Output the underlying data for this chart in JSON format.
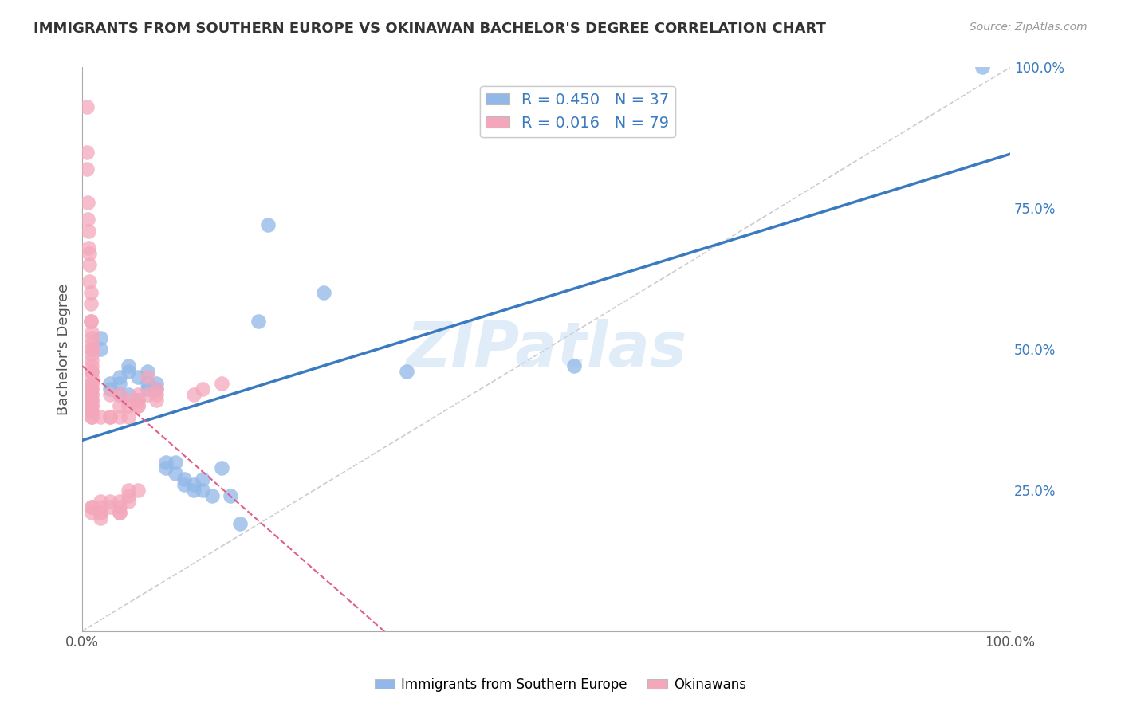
{
  "title": "IMMIGRANTS FROM SOUTHERN EUROPE VS OKINAWAN BACHELOR'S DEGREE CORRELATION CHART",
  "source": "Source: ZipAtlas.com",
  "ylabel": "Bachelor's Degree",
  "watermark": "ZIPatlas",
  "blue_R": 0.45,
  "blue_N": 37,
  "pink_R": 0.016,
  "pink_N": 79,
  "blue_color": "#91b8e8",
  "pink_color": "#f4a7bb",
  "blue_line_color": "#3a7abf",
  "pink_line_color": "#e05c8a",
  "legend_blue_label": "Immigrants from Southern Europe",
  "legend_pink_label": "Okinawans",
  "blue_points": [
    [
      0.02,
      0.52
    ],
    [
      0.02,
      0.5
    ],
    [
      0.03,
      0.43
    ],
    [
      0.03,
      0.44
    ],
    [
      0.04,
      0.44
    ],
    [
      0.04,
      0.45
    ],
    [
      0.04,
      0.42
    ],
    [
      0.05,
      0.46
    ],
    [
      0.05,
      0.47
    ],
    [
      0.05,
      0.42
    ],
    [
      0.06,
      0.41
    ],
    [
      0.06,
      0.45
    ],
    [
      0.07,
      0.44
    ],
    [
      0.07,
      0.46
    ],
    [
      0.07,
      0.43
    ],
    [
      0.08,
      0.44
    ],
    [
      0.08,
      0.43
    ],
    [
      0.09,
      0.29
    ],
    [
      0.09,
      0.3
    ],
    [
      0.1,
      0.3
    ],
    [
      0.1,
      0.28
    ],
    [
      0.11,
      0.26
    ],
    [
      0.11,
      0.27
    ],
    [
      0.12,
      0.25
    ],
    [
      0.12,
      0.26
    ],
    [
      0.13,
      0.25
    ],
    [
      0.13,
      0.27
    ],
    [
      0.14,
      0.24
    ],
    [
      0.15,
      0.29
    ],
    [
      0.16,
      0.24
    ],
    [
      0.17,
      0.19
    ],
    [
      0.19,
      0.55
    ],
    [
      0.2,
      0.72
    ],
    [
      0.26,
      0.6
    ],
    [
      0.35,
      0.46
    ],
    [
      0.53,
      0.47
    ],
    [
      0.97,
      1.0
    ]
  ],
  "pink_points": [
    [
      0.005,
      0.93
    ],
    [
      0.005,
      0.85
    ],
    [
      0.005,
      0.82
    ],
    [
      0.006,
      0.76
    ],
    [
      0.006,
      0.73
    ],
    [
      0.007,
      0.71
    ],
    [
      0.007,
      0.68
    ],
    [
      0.008,
      0.67
    ],
    [
      0.008,
      0.65
    ],
    [
      0.008,
      0.62
    ],
    [
      0.009,
      0.6
    ],
    [
      0.009,
      0.58
    ],
    [
      0.009,
      0.55
    ],
    [
      0.009,
      0.55
    ],
    [
      0.01,
      0.53
    ],
    [
      0.01,
      0.52
    ],
    [
      0.01,
      0.51
    ],
    [
      0.01,
      0.5
    ],
    [
      0.01,
      0.5
    ],
    [
      0.01,
      0.49
    ],
    [
      0.01,
      0.48
    ],
    [
      0.01,
      0.47
    ],
    [
      0.01,
      0.46
    ],
    [
      0.01,
      0.46
    ],
    [
      0.01,
      0.45
    ],
    [
      0.01,
      0.44
    ],
    [
      0.01,
      0.44
    ],
    [
      0.01,
      0.43
    ],
    [
      0.01,
      0.43
    ],
    [
      0.01,
      0.42
    ],
    [
      0.01,
      0.42
    ],
    [
      0.01,
      0.41
    ],
    [
      0.01,
      0.41
    ],
    [
      0.01,
      0.4
    ],
    [
      0.01,
      0.4
    ],
    [
      0.01,
      0.39
    ],
    [
      0.01,
      0.39
    ],
    [
      0.01,
      0.38
    ],
    [
      0.01,
      0.38
    ],
    [
      0.01,
      0.22
    ],
    [
      0.01,
      0.22
    ],
    [
      0.01,
      0.21
    ],
    [
      0.02,
      0.38
    ],
    [
      0.02,
      0.23
    ],
    [
      0.02,
      0.22
    ],
    [
      0.02,
      0.21
    ],
    [
      0.02,
      0.21
    ],
    [
      0.02,
      0.2
    ],
    [
      0.03,
      0.42
    ],
    [
      0.03,
      0.38
    ],
    [
      0.03,
      0.38
    ],
    [
      0.03,
      0.23
    ],
    [
      0.03,
      0.22
    ],
    [
      0.04,
      0.42
    ],
    [
      0.04,
      0.4
    ],
    [
      0.04,
      0.38
    ],
    [
      0.04,
      0.23
    ],
    [
      0.04,
      0.22
    ],
    [
      0.04,
      0.21
    ],
    [
      0.04,
      0.21
    ],
    [
      0.05,
      0.41
    ],
    [
      0.05,
      0.4
    ],
    [
      0.05,
      0.38
    ],
    [
      0.05,
      0.25
    ],
    [
      0.05,
      0.24
    ],
    [
      0.05,
      0.23
    ],
    [
      0.06,
      0.42
    ],
    [
      0.06,
      0.41
    ],
    [
      0.06,
      0.4
    ],
    [
      0.06,
      0.4
    ],
    [
      0.06,
      0.25
    ],
    [
      0.07,
      0.45
    ],
    [
      0.07,
      0.42
    ],
    [
      0.08,
      0.43
    ],
    [
      0.08,
      0.42
    ],
    [
      0.08,
      0.41
    ],
    [
      0.12,
      0.42
    ],
    [
      0.13,
      0.43
    ],
    [
      0.15,
      0.44
    ]
  ],
  "xlim": [
    0,
    1
  ],
  "ylim": [
    0,
    1
  ],
  "ytick_labels": [
    "25.0%",
    "50.0%",
    "75.0%",
    "100.0%"
  ],
  "ytick_values": [
    0.25,
    0.5,
    0.75,
    1.0
  ],
  "xtick_labels": [
    "0.0%",
    "100.0%"
  ],
  "xtick_values": [
    0.0,
    1.0
  ],
  "background_color": "#ffffff",
  "grid_color": "#dddddd"
}
